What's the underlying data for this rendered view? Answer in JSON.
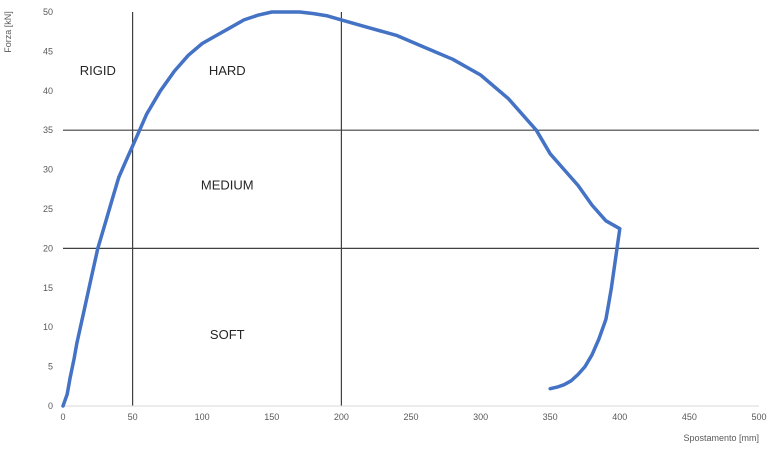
{
  "chart_data": {
    "type": "line",
    "title": "",
    "xlabel": "Spostamento [mm]",
    "ylabel": "Forza [kN]",
    "xlim": [
      0,
      500
    ],
    "ylim": [
      0,
      50
    ],
    "x_ticks": [
      0,
      50,
      100,
      150,
      200,
      250,
      300,
      350,
      400,
      450,
      500
    ],
    "y_ticks": [
      0,
      5,
      10,
      15,
      20,
      25,
      30,
      35,
      40,
      45,
      50
    ],
    "grid": false,
    "legend": "none",
    "series": [
      {
        "color": "#4472c4",
        "x": [
          0,
          3,
          5,
          8,
          10,
          15,
          20,
          25,
          30,
          35,
          40,
          45,
          50,
          55,
          60,
          70,
          80,
          90,
          100,
          110,
          120,
          130,
          140,
          150,
          160,
          170,
          180,
          190,
          200,
          220,
          240,
          260,
          280,
          300,
          320,
          340,
          350,
          360,
          370,
          380,
          390,
          400,
          398,
          396,
          394,
          392,
          390,
          385,
          380,
          375,
          370,
          365,
          360,
          355,
          350
        ],
        "y": [
          0,
          1.5,
          3.5,
          6,
          8,
          12,
          16,
          20,
          23,
          26,
          29,
          31,
          33,
          35,
          37,
          40,
          42.5,
          44.5,
          46,
          47,
          48,
          49,
          49.6,
          50,
          50,
          50,
          49.8,
          49.5,
          49,
          48,
          47,
          45.5,
          44,
          42,
          39,
          35,
          32,
          30,
          28,
          25.5,
          23.5,
          22.5,
          20,
          17.5,
          15,
          13,
          11,
          8.5,
          6.5,
          5,
          4,
          3.2,
          2.7,
          2.4,
          2.2
        ]
      }
    ],
    "reference_lines": {
      "vertical": [
        50,
        200
      ],
      "horizontal": [
        20,
        35
      ]
    },
    "annotations": [
      {
        "text": "RIGID",
        "x": 25,
        "y": 42
      },
      {
        "text": "HARD",
        "x": 118,
        "y": 42
      },
      {
        "text": "MEDIUM",
        "x": 118,
        "y": 27.5
      },
      {
        "text": "SOFT",
        "x": 118,
        "y": 8.5
      }
    ],
    "colors": {
      "line": "#4472c4",
      "reference": "#404040",
      "axis": "#d9d9d9"
    }
  }
}
